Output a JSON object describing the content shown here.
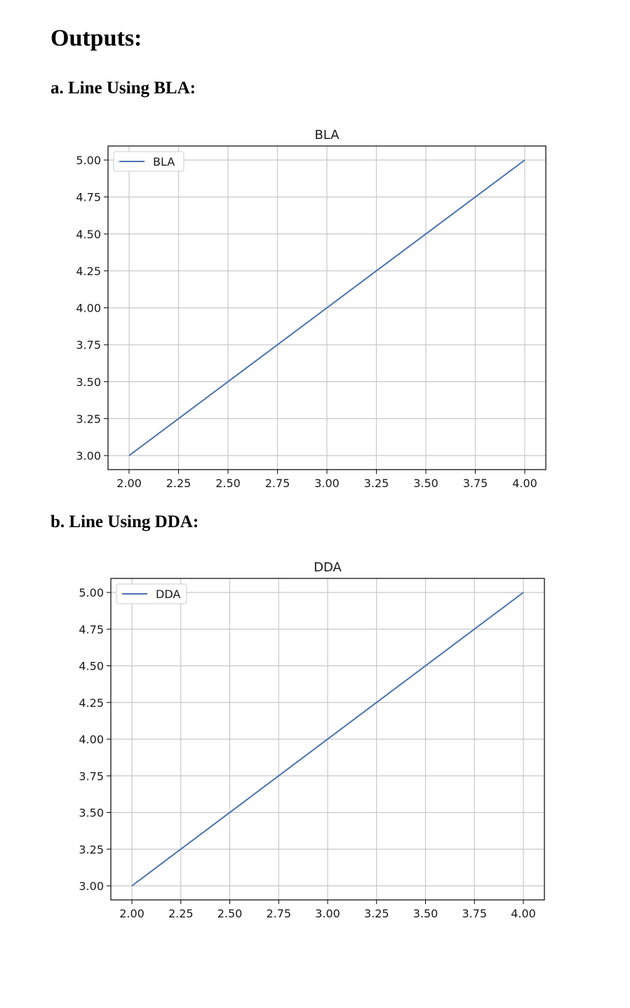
{
  "page": {
    "heading": "Outputs:",
    "section_a": "a. Line Using BLA:",
    "section_b": "b. Line Using DDA:"
  },
  "colors": {
    "line": "#4c72b0",
    "grid": "#c8c8c8",
    "frame": "#000000"
  },
  "chart_data": [
    {
      "type": "line",
      "title": "BLA",
      "xlabel": "",
      "ylabel": "",
      "xlim": [
        2.0,
        4.0
      ],
      "ylim": [
        3.0,
        5.0
      ],
      "xticks": [
        2.0,
        2.25,
        2.5,
        2.75,
        3.0,
        3.25,
        3.5,
        3.75,
        4.0
      ],
      "yticks": [
        3.0,
        3.25,
        3.5,
        3.75,
        4.0,
        4.25,
        4.5,
        4.75,
        5.0
      ],
      "xtick_labels": [
        "2.00",
        "2.25",
        "2.50",
        "2.75",
        "3.00",
        "3.25",
        "3.50",
        "3.75",
        "4.00"
      ],
      "ytick_labels": [
        "3.00",
        "3.25",
        "3.50",
        "3.75",
        "4.00",
        "4.25",
        "4.50",
        "4.75",
        "5.00"
      ],
      "grid": true,
      "legend_position": "top-left",
      "series": [
        {
          "name": "BLA",
          "x": [
            2,
            4
          ],
          "y": [
            3,
            5
          ]
        }
      ]
    },
    {
      "type": "line",
      "title": "DDA",
      "xlabel": "",
      "ylabel": "",
      "xlim": [
        2.0,
        4.0
      ],
      "ylim": [
        3.0,
        5.0
      ],
      "xticks": [
        2.0,
        2.25,
        2.5,
        2.75,
        3.0,
        3.25,
        3.5,
        3.75,
        4.0
      ],
      "yticks": [
        3.0,
        3.25,
        3.5,
        3.75,
        4.0,
        4.25,
        4.5,
        4.75,
        5.0
      ],
      "xtick_labels": [
        "2.00",
        "2.25",
        "2.50",
        "2.75",
        "3.00",
        "3.25",
        "3.50",
        "3.75",
        "4.00"
      ],
      "ytick_labels": [
        "3.00",
        "3.25",
        "3.50",
        "3.75",
        "4.00",
        "4.25",
        "4.50",
        "4.75",
        "5.00"
      ],
      "grid": true,
      "legend_position": "top-left",
      "series": [
        {
          "name": "DDA",
          "x": [
            2,
            4
          ],
          "y": [
            3,
            5
          ]
        }
      ]
    }
  ]
}
